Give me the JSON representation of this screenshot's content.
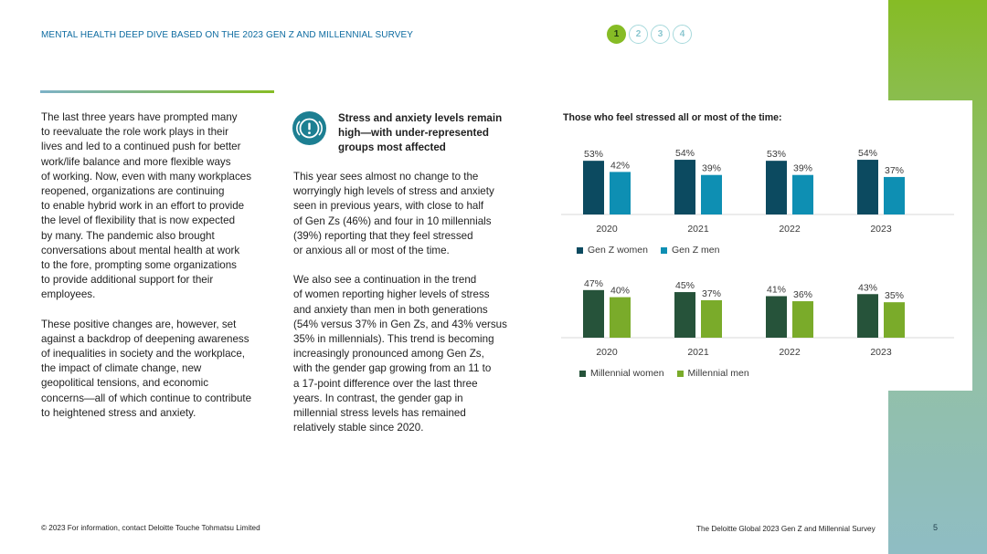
{
  "header": {
    "title": "MENTAL HEALTH DEEP DIVE BASED ON THE 2023 GEN Z AND MILLENNIAL SURVEY",
    "pages": [
      "1",
      "2",
      "3",
      "4"
    ],
    "active_page": "1"
  },
  "left_column": {
    "paragraphs": [
      "The last three years have prompted many\nto reevaluate the role work plays in their\nlives and led to a continued push for better\nwork/life balance and more flexible ways\nof working. Now, even with many workplaces\nreopened, organizations are continuing\nto enable hybrid work in an effort to provide\nthe level of flexibility that is now expected\nby many. The pandemic also brought\nconversations about mental health at work\nto the fore, prompting some organizations\nto provide additional support for their\nemployees.",
      "These positive changes are, however, set\nagainst a backdrop of deepening awareness\nof inequalities in society and the workplace,\nthe impact of climate change, new\ngeopolitical tensions, and economic\nconcerns—all of which continue to contribute\nto heightened stress and anxiety."
    ]
  },
  "middle_column": {
    "icon": "alert-circle-icon",
    "heading": "Stress and anxiety levels remain\nhigh—with under-represented\ngroups most affected",
    "paragraphs": [
      "This year sees almost no change to the\nworryingly high levels of stress and anxiety\nseen in previous years, with close to half\nof Gen Zs (46%) and four in 10 millennials\n(39%) reporting that they feel stressed\nor anxious all or most of the time.",
      "We also see a continuation in the trend\nof women reporting higher levels of stress\nand anxiety than men in both generations\n(54% versus 37% in Gen Zs, and 43% versus\n35% in millennials). This trend is becoming\nincreasingly pronounced among Gen Zs,\nwith the gender gap growing from an 11 to\na 17-point difference over the last three\nyears. In contrast, the gender gap in\nmillennial stress levels has remained\nrelatively stable since 2020."
    ]
  },
  "chart_heading": "Those who feel stressed all or most of the time:",
  "chart_data": [
    {
      "type": "bar",
      "categories": [
        "2020",
        "2021",
        "2022",
        "2023"
      ],
      "series": [
        {
          "name": "Gen Z women",
          "values": [
            53,
            54,
            53,
            54
          ],
          "labels": [
            "53%",
            "54%",
            "53%",
            "54%"
          ],
          "color": "#0c4a60"
        },
        {
          "name": "Gen Z men",
          "values": [
            42,
            39,
            39,
            37
          ],
          "labels": [
            "42%",
            "39%",
            "39%",
            "37%"
          ],
          "color": "#0e8fb3"
        }
      ],
      "unit": "%",
      "grid": false,
      "legend": "bottom-left"
    },
    {
      "type": "bar",
      "categories": [
        "2020",
        "2021",
        "2022",
        "2023"
      ],
      "series": [
        {
          "name": "Millennial women",
          "values": [
            47,
            45,
            41,
            43
          ],
          "labels": [
            "47%",
            "45%",
            "41%",
            "43%"
          ],
          "color": "#26533a"
        },
        {
          "name": "Millennial men",
          "values": [
            40,
            37,
            36,
            35
          ],
          "labels": [
            "40%",
            "37%",
            "36%",
            "35%"
          ],
          "color": "#7aab2a"
        }
      ],
      "unit": "%",
      "grid": false,
      "legend": "bottom-left"
    }
  ],
  "colors": {
    "accent_blue": "#0d6ba0",
    "accent_green": "#86bc25",
    "icon_teal": "#1d7f92"
  },
  "footer": {
    "left": "© 2023 For information, contact Deloitte Touche Tohmatsu Limited",
    "right": "The Deloitte Global 2023 Gen Z and Millennial Survey",
    "page_number": "5"
  }
}
